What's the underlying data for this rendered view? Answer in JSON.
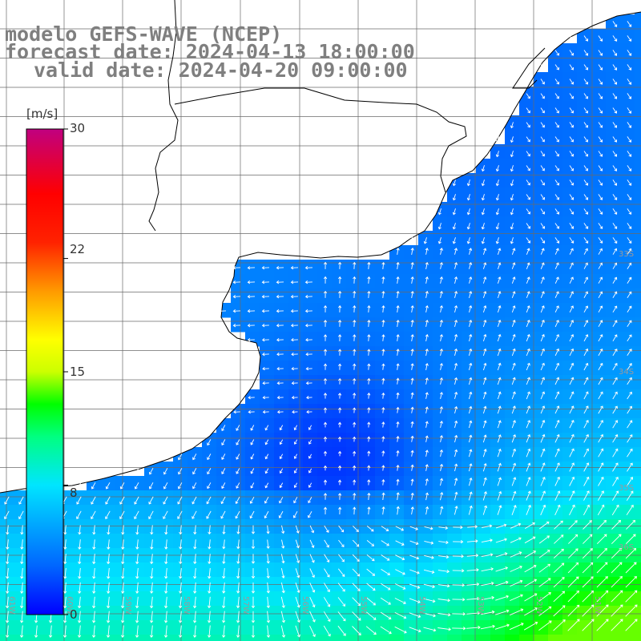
{
  "title": {
    "line1": "modelo GEFS-WAVE (NCEP)",
    "line2": "forecast date: 2024-04-13 18:00:00",
    "line3": "valid date: 2024-04-20 09:00:00"
  },
  "colorbar": {
    "unit": "[m/s]",
    "min": 0,
    "max": 30,
    "ticks": [
      {
        "value": 30,
        "label": "30"
      },
      {
        "value": 22,
        "label": "22"
      },
      {
        "value": 15,
        "label": "15"
      },
      {
        "value": 8,
        "label": "8"
      },
      {
        "value": 0,
        "label": "0"
      }
    ],
    "colors": [
      "#0000ff",
      "#0077ff",
      "#00e5ff",
      "#00ff00",
      "#ffff00",
      "#ff9900",
      "#ff0000",
      "#c00080"
    ]
  },
  "grid": {
    "longitudes": [
      "61W",
      "60W",
      "59W",
      "58W",
      "57W",
      "56W",
      "55W",
      "54W",
      "53W",
      "52W",
      "51W"
    ],
    "latitude_labels": [
      "33S",
      "34S",
      "35S",
      "36S"
    ]
  },
  "colors": {
    "land": "#ffffff",
    "coast": "#000000",
    "grid": "#666666",
    "title": "#7f7f7f",
    "arrows": "#ffffff"
  }
}
